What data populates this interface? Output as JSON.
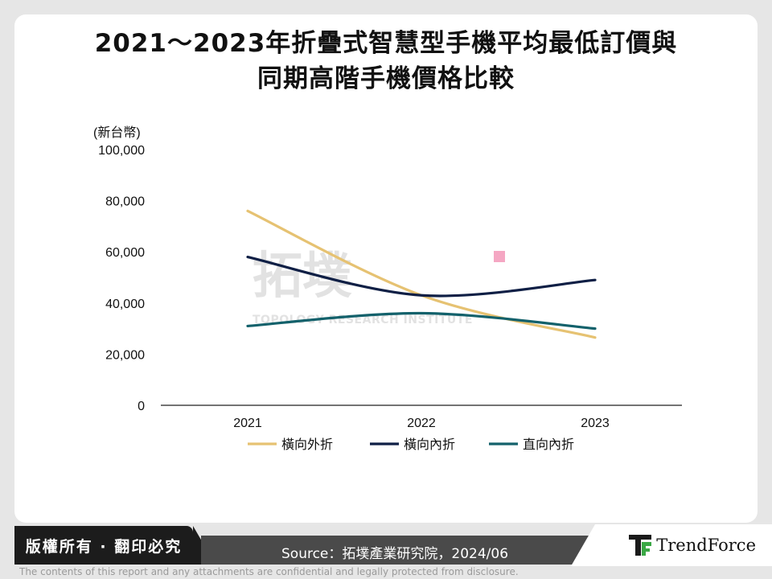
{
  "title_lines": [
    "2021～2023年折疊式智慧型手機平均最低訂價與",
    "同期高階手機價格比較"
  ],
  "unit_label": "(新台幣)",
  "watermark": {
    "main": "拓墣",
    "sub": "TOPOLOGY RESEARCH INSTITUTE"
  },
  "footer": {
    "copyright": "版權所有 · 翻印必究",
    "source": "Source：拓墣產業研究院，2024/06",
    "brand": "TrendForce",
    "disclaimer": "The contents of this report and any attachments are confidential and legally protected from disclosure."
  },
  "colors": {
    "horizontal_out": "#e6c272",
    "horizontal_in": "#0f1f45",
    "vertical_in": "#13616b"
  },
  "chart_data": {
    "type": "line",
    "x": [
      "2021",
      "2022",
      "2023"
    ],
    "ylim": [
      0,
      100000
    ],
    "yticks": [
      "0",
      "20,000",
      "40,000",
      "60,000",
      "80,000",
      "100,000"
    ],
    "ylabel": "(新台幣)",
    "series": [
      {
        "name": "橫向外折",
        "color": "#e6c272",
        "values": [
          76000,
          43000,
          26500
        ]
      },
      {
        "name": "橫向內折",
        "color": "#0f1f45",
        "values": [
          58000,
          43000,
          49000
        ]
      },
      {
        "name": "直向內折",
        "color": "#13616b",
        "values": [
          31000,
          36000,
          30000
        ]
      }
    ],
    "legend": "bottom",
    "grid": false
  }
}
